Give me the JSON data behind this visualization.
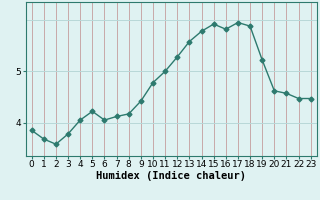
{
  "x": [
    0,
    1,
    2,
    3,
    4,
    5,
    6,
    7,
    8,
    9,
    10,
    11,
    12,
    13,
    14,
    15,
    16,
    17,
    18,
    19,
    20,
    21,
    22,
    23
  ],
  "y": [
    3.85,
    3.68,
    3.58,
    3.78,
    4.05,
    4.22,
    4.05,
    4.12,
    4.17,
    4.42,
    4.78,
    5.0,
    5.28,
    5.58,
    5.78,
    5.92,
    5.82,
    5.95,
    5.88,
    5.22,
    4.62,
    4.57,
    4.47,
    4.47
  ],
  "line_color": "#2d7a6e",
  "marker": "D",
  "marker_size": 2.5,
  "bg_color": "#dff2f2",
  "vgrid_color": "#c8a8a8",
  "hgrid_color": "#b8d8d8",
  "xlabel": "Humidex (Indice chaleur)",
  "xlim": [
    -0.5,
    23.5
  ],
  "ylim": [
    3.35,
    6.35
  ],
  "yticks": [
    4,
    5
  ],
  "xtick_labels": [
    "0",
    "1",
    "2",
    "3",
    "4",
    "5",
    "6",
    "7",
    "8",
    "9",
    "10",
    "11",
    "12",
    "13",
    "14",
    "15",
    "16",
    "17",
    "18",
    "19",
    "20",
    "21",
    "22",
    "23"
  ],
  "xlabel_fontsize": 7.5,
  "tick_fontsize": 6.5,
  "linewidth": 1.0
}
